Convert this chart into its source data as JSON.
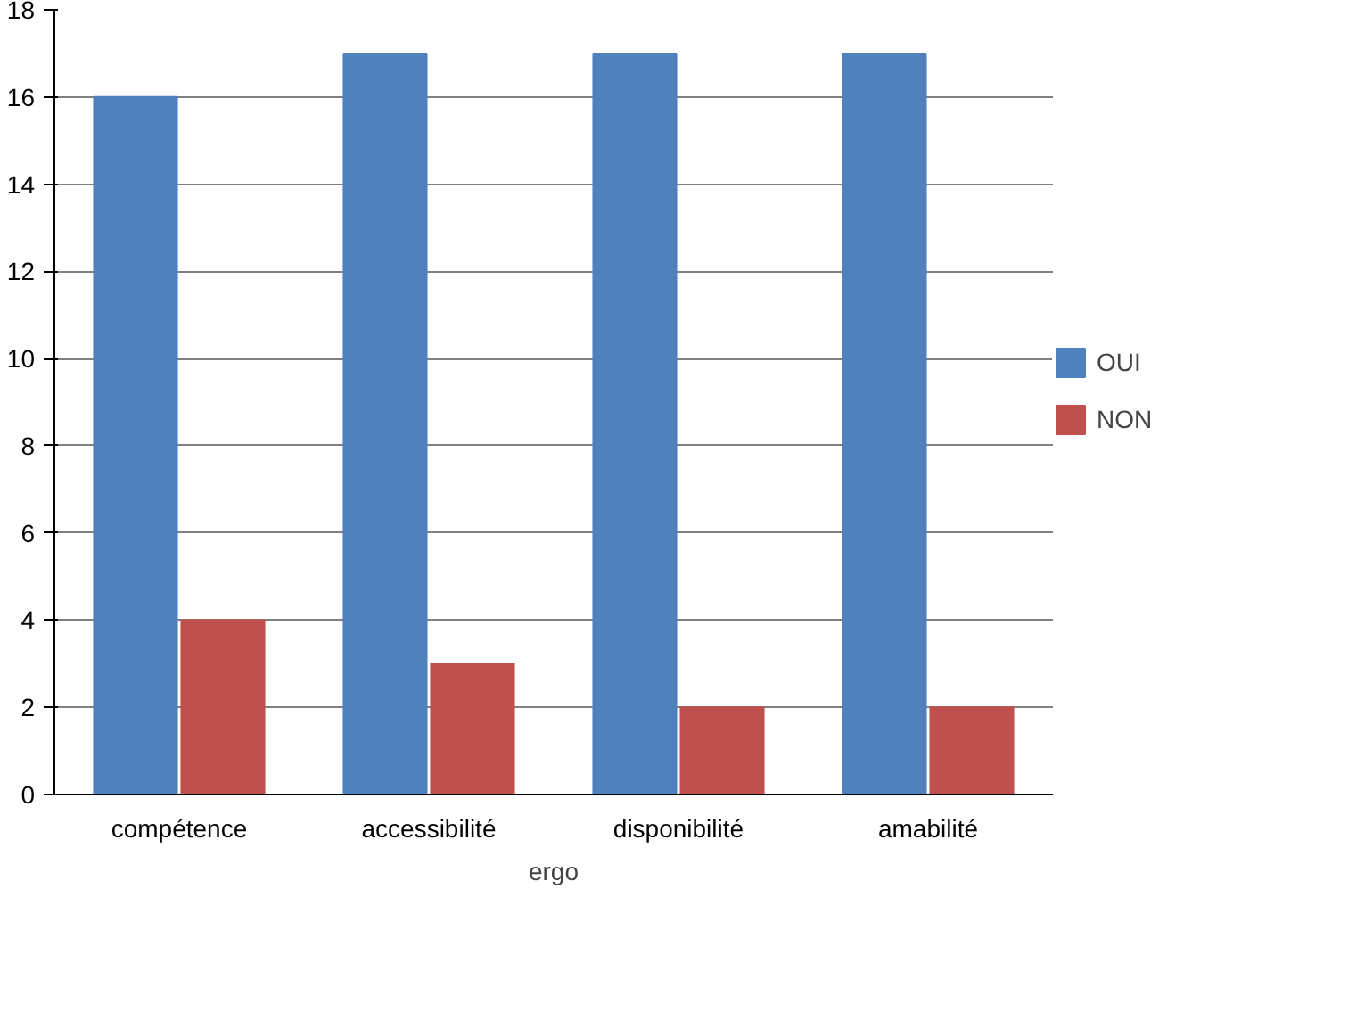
{
  "chart_data": {
    "type": "bar",
    "xlabel": "ergo",
    "categories": [
      "compétence",
      "accessibilité",
      "disponibilité",
      "amabilité"
    ],
    "series": [
      {
        "name": "OUI",
        "color": "#4f81bd",
        "values": [
          16,
          17,
          17,
          17
        ]
      },
      {
        "name": "NON",
        "color": "#c0504d",
        "values": [
          4,
          3,
          2,
          2
        ]
      }
    ],
    "ylim": [
      0,
      18
    ],
    "yticks": [
      0,
      2,
      4,
      6,
      8,
      10,
      12,
      14,
      16,
      18
    ],
    "grid": "y",
    "legend": "right"
  }
}
